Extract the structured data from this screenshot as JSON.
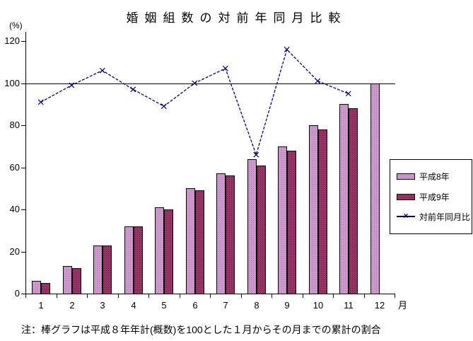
{
  "title": "婚姻組数の対前年同月比較",
  "note": "注：棒グラフは平成８年年計(概数)を100とした１月からその月までの累計の割合",
  "y_axis": {
    "unit": "(%)"
  },
  "x_axis": {
    "unit": "月"
  },
  "colors": {
    "heisei8_bar": "#cc99cc",
    "heisei9_bar": "#993366",
    "line": "#000080",
    "axis": "#000000",
    "background": "#ffffff"
  },
  "chart_data": {
    "type": "bar",
    "subtype": "bar+line combo",
    "title": "婚姻組数の対前年同月比較",
    "xlabel": "月",
    "ylabel": "(%)",
    "categories": [
      "1",
      "2",
      "3",
      "4",
      "5",
      "6",
      "7",
      "8",
      "9",
      "10",
      "11",
      "12"
    ],
    "series": [
      {
        "name": "平成8年",
        "type": "bar",
        "color": "#cc99cc",
        "values": [
          6,
          13,
          23,
          32,
          41,
          50,
          57,
          64,
          70,
          80,
          90,
          100
        ]
      },
      {
        "name": "平成9年",
        "type": "bar",
        "color": "#993366",
        "values": [
          5,
          12,
          23,
          32,
          40,
          49,
          56,
          61,
          68,
          78,
          88,
          null
        ]
      },
      {
        "name": "対前年同月比",
        "type": "line",
        "marker": "x",
        "color": "#000080",
        "values": [
          91,
          99,
          106,
          97,
          89,
          100,
          107,
          66,
          116,
          101,
          95,
          null
        ]
      }
    ],
    "ylim": [
      0,
      120
    ],
    "yticks": [
      0,
      20,
      40,
      60,
      80,
      100,
      120
    ],
    "reference_line": 100,
    "grid": false,
    "legend_position": "right-middle"
  }
}
